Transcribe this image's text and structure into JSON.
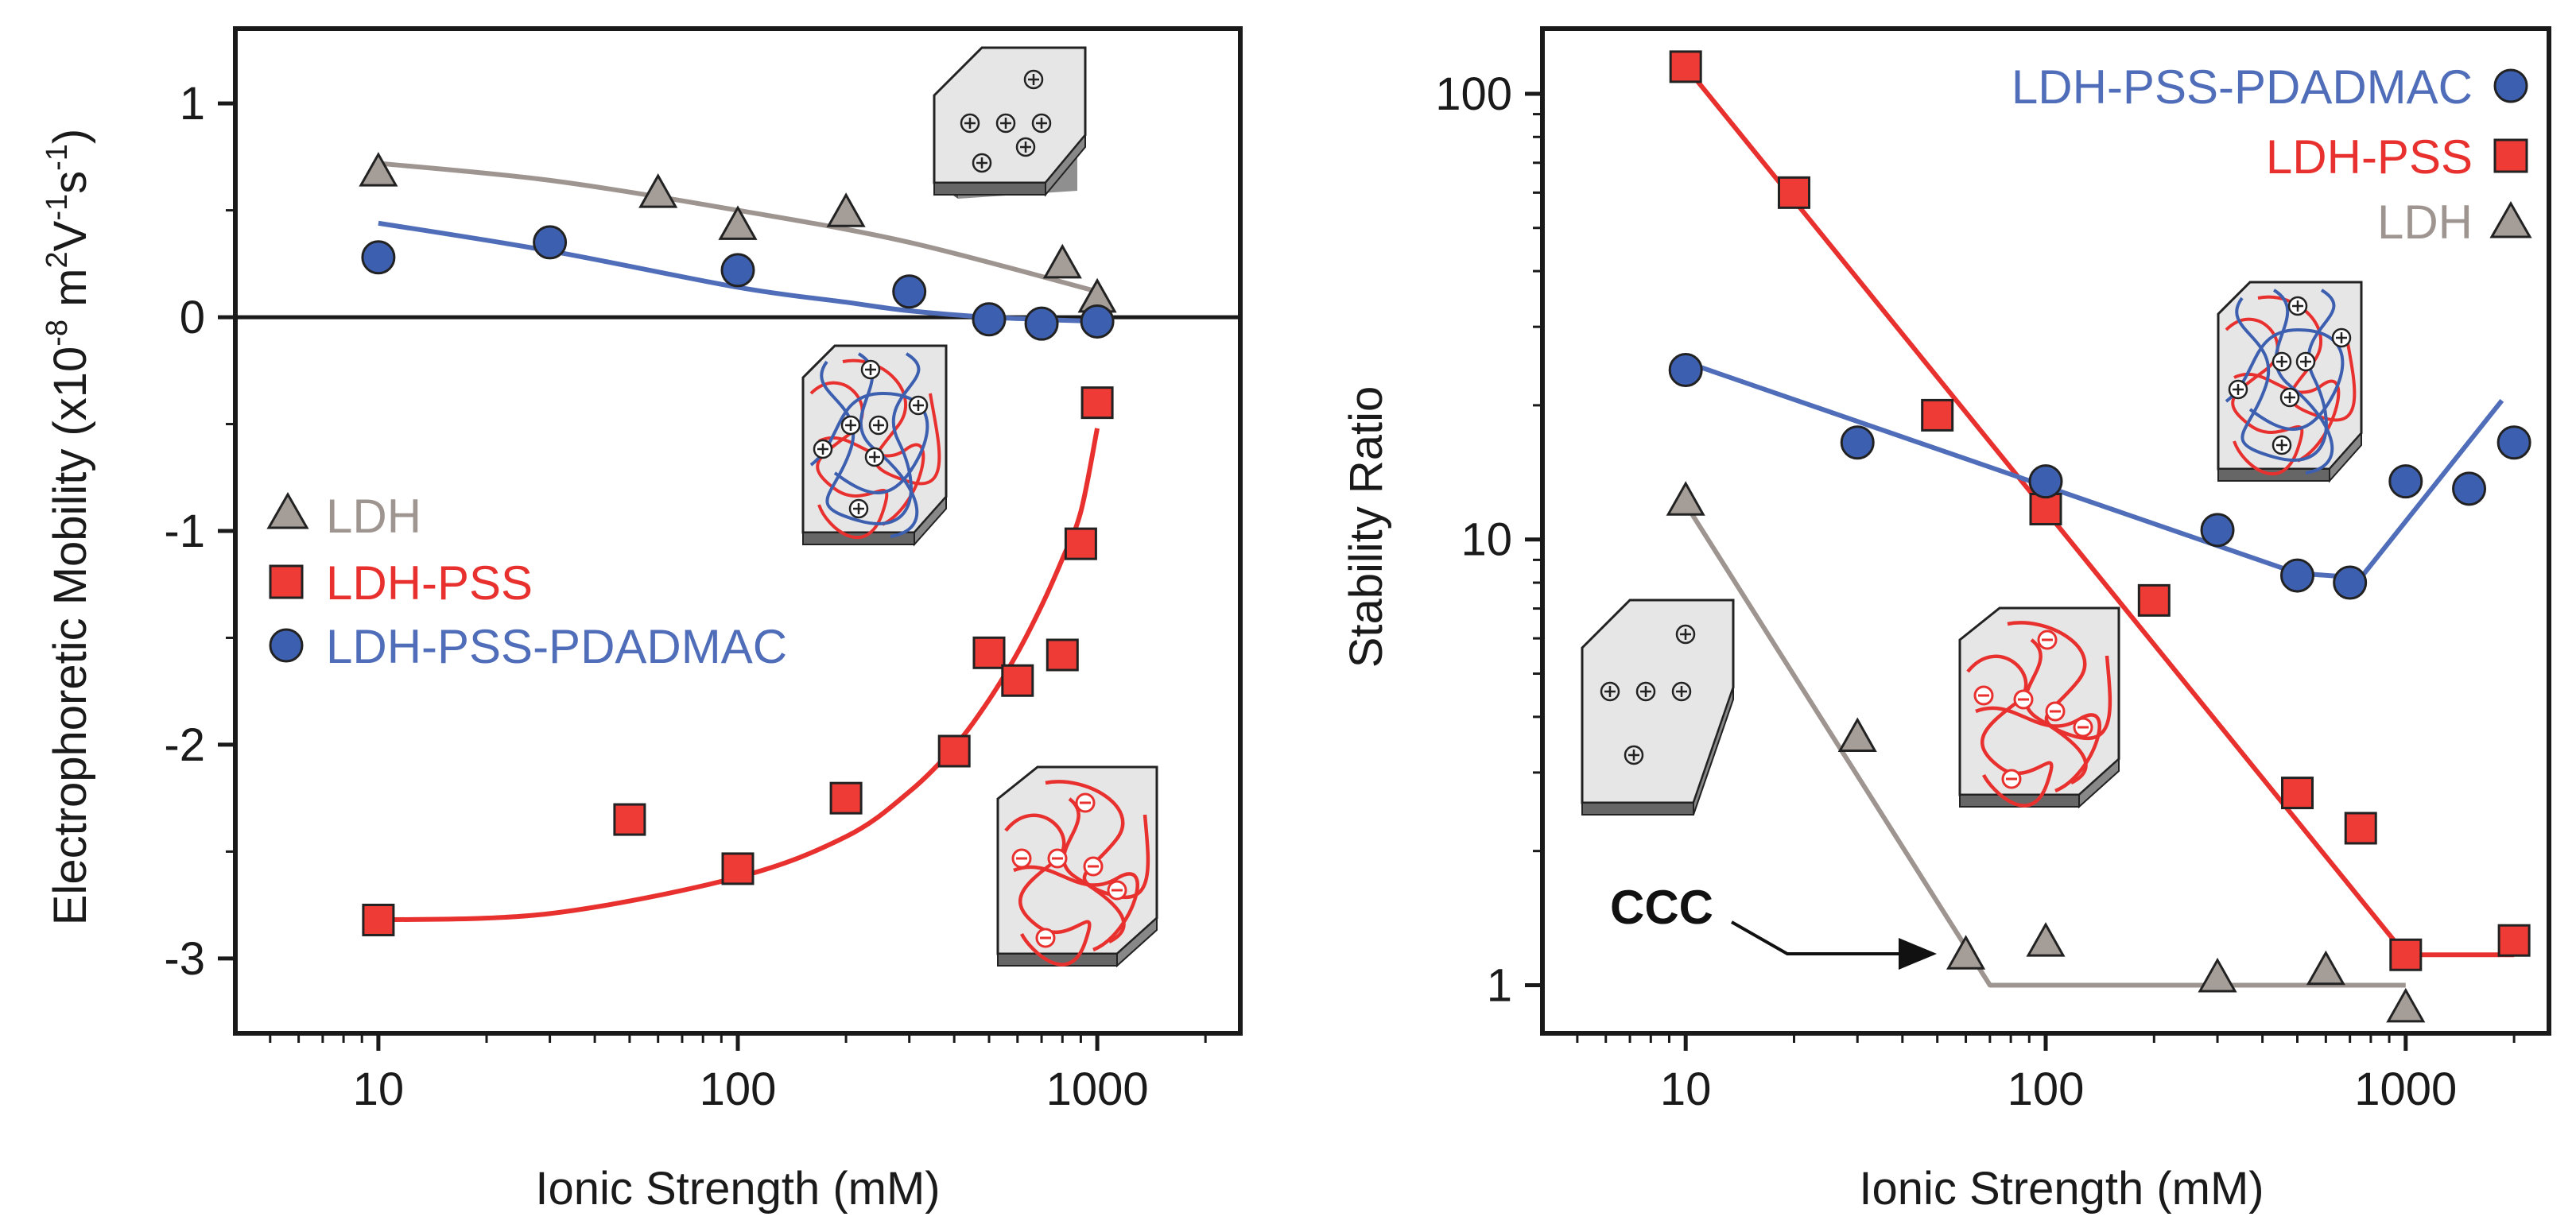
{
  "colors": {
    "ldh": "#9e9590",
    "ldh_fill": "#a49d98",
    "pss": "#e8312e",
    "pss_fill": "#ee3b36",
    "pdadmac": "#4f6db8",
    "pdadmac_fill": "#3d5fb0",
    "axis": "#1a1a1a",
    "panel_bg": "#f2f2f2"
  },
  "chart_data": [
    {
      "type": "scatter",
      "panel": "left",
      "xlabel": "Ionic Strength (mM)",
      "ylabel": "Electrophoretic Mobility (x10^-8 m^2 V^-1 s^-1)",
      "ylabel_parts": [
        "Electrophoretic Mobility (x10",
        "-8",
        " m",
        "2",
        "V",
        "-1",
        "s",
        "-1",
        ")"
      ],
      "x_scale": "log",
      "xlim": [
        4,
        2500
      ],
      "ylim": [
        -3.35,
        1.35
      ],
      "x_ticks": [
        {
          "v": 10,
          "label": "10"
        },
        {
          "v": 100,
          "label": "100"
        },
        {
          "v": 1000,
          "label": "1000"
        }
      ],
      "y_ticks": [
        {
          "v": 1,
          "label": "1"
        },
        {
          "v": 0,
          "label": "0"
        },
        {
          "v": -1,
          "label": "-1"
        },
        {
          "v": -2,
          "label": "-2"
        },
        {
          "v": -3,
          "label": "-3"
        }
      ],
      "zero_line": true,
      "legend": {
        "placement": "left-middle",
        "entries": [
          {
            "name": "LDH",
            "marker": "triangle",
            "series": 0
          },
          {
            "name": "LDH-PSS",
            "marker": "square",
            "series": 1
          },
          {
            "name": "LDH-PSS-PDADMAC",
            "marker": "circle",
            "series": 2
          }
        ]
      },
      "series": [
        {
          "name": "LDH",
          "marker": "triangle",
          "x": [
            10,
            60,
            100,
            200,
            800,
            1000
          ],
          "y": [
            0.68,
            0.58,
            0.43,
            0.49,
            0.25,
            0.09
          ],
          "fit": {
            "x": [
              10,
              30,
              100,
              300,
              1000
            ],
            "y": [
              0.72,
              0.64,
              0.5,
              0.35,
              0.12
            ]
          }
        },
        {
          "name": "LDH-PSS",
          "marker": "square",
          "x": [
            10,
            50,
            100,
            200,
            400,
            500,
            600,
            800,
            900,
            1000
          ],
          "y": [
            -2.82,
            -2.35,
            -2.58,
            -2.25,
            -2.03,
            -1.57,
            -1.7,
            -1.58,
            -1.06,
            -0.4
          ],
          "fit": {
            "x": [
              10,
              30,
              100,
              200,
              300,
              400,
              500,
              600,
              700,
              800,
              900,
              1000
            ],
            "y": [
              -2.82,
              -2.79,
              -2.62,
              -2.43,
              -2.22,
              -2.01,
              -1.79,
              -1.57,
              -1.35,
              -1.13,
              -0.91,
              -0.52
            ]
          }
        },
        {
          "name": "LDH-PSS-PDADMAC",
          "marker": "circle",
          "x": [
            10,
            30,
            100,
            300,
            500,
            700,
            1000
          ],
          "y": [
            0.28,
            0.35,
            0.22,
            0.12,
            -0.01,
            -0.03,
            -0.02
          ],
          "fit": {
            "x": [
              10,
              30,
              100,
              200,
              300,
              500,
              1000
            ],
            "y": [
              0.44,
              0.31,
              0.14,
              0.07,
              0.03,
              0.0,
              -0.02
            ]
          }
        }
      ]
    },
    {
      "type": "scatter",
      "panel": "right",
      "xlabel": "Ionic Strength (mM)",
      "ylabel": "Stability Ratio",
      "x_scale": "log",
      "y_scale": "log",
      "xlim": [
        4,
        2500
      ],
      "ylim": [
        0.78,
        140
      ],
      "x_ticks": [
        {
          "v": 10,
          "label": "10"
        },
        {
          "v": 100,
          "label": "100"
        },
        {
          "v": 1000,
          "label": "1000"
        }
      ],
      "y_ticks": [
        {
          "v": 100,
          "label": "100"
        },
        {
          "v": 10,
          "label": "10"
        },
        {
          "v": 1,
          "label": "1"
        }
      ],
      "legend": {
        "placement": "top-right",
        "entries": [
          {
            "name": "LDH-PSS-PDADMAC",
            "marker": "circle",
            "series": 2
          },
          {
            "name": "LDH-PSS",
            "marker": "square",
            "series": 1
          },
          {
            "name": "LDH",
            "marker": "triangle",
            "series": 0
          }
        ]
      },
      "annotation": {
        "text": "CCC",
        "point_x": 65,
        "point_y": 1.0
      },
      "series": [
        {
          "name": "LDH",
          "marker": "triangle",
          "x": [
            10,
            30,
            60,
            100,
            300,
            600,
            1000
          ],
          "y": [
            12.2,
            3.6,
            1.17,
            1.25,
            1.04,
            1.08,
            0.89
          ],
          "fit": {
            "x": [
              10,
              70,
              1000
            ],
            "y": [
              12.0,
              1.0,
              1.0
            ]
          }
        },
        {
          "name": "LDH-PSS",
          "marker": "square",
          "x": [
            10,
            20,
            50,
            100,
            200,
            500,
            750,
            1000,
            2000
          ],
          "y": [
            115,
            60,
            19,
            11.7,
            7.3,
            2.7,
            2.25,
            1.17,
            1.26
          ],
          "fit": {
            "x": [
              10,
              1000,
              2000
            ],
            "y": [
              115,
              1.17,
              1.17
            ]
          }
        },
        {
          "name": "LDH-PSS-PDADMAC",
          "marker": "circle",
          "x": [
            10,
            30,
            100,
            300,
            500,
            700,
            1000,
            1500,
            2000
          ],
          "y": [
            24,
            16.5,
            13.5,
            10.5,
            8.3,
            8.0,
            13.5,
            13.0,
            16.5
          ],
          "fit": {
            "x": [
              10,
              500,
              750,
              1850
            ],
            "y": [
              25,
              8.4,
              8.2,
              20.5
            ]
          }
        }
      ]
    }
  ]
}
